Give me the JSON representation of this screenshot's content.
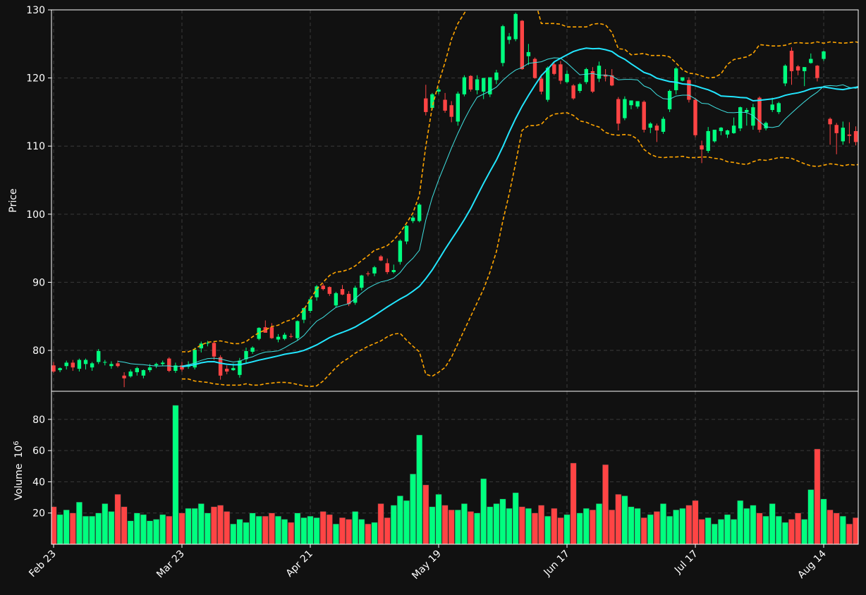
{
  "chart_data": {
    "type": "candlestick",
    "colors": {
      "background": "#111111",
      "up": "#00ff7f",
      "down": "#ff4444",
      "grid": "#3a3a3a",
      "axis": "#ffffff",
      "ma_thick": "#22e6ff",
      "ma_thin": "#3fe0e0",
      "band": "#ffa500"
    },
    "price_panel": {
      "ylabel": "Price",
      "ylim": [
        74,
        130
      ],
      "yticks": [
        80,
        90,
        100,
        110,
        120,
        130
      ]
    },
    "volume_panel": {
      "ylabel": "Volume",
      "ylabel_exponent": "6",
      "ylim": [
        0,
        98
      ],
      "yticks": [
        20,
        40,
        60,
        80
      ]
    },
    "x_ticks": [
      {
        "index": 0,
        "label": "Feb 23"
      },
      {
        "index": 20,
        "label": "Mar 23"
      },
      {
        "index": 40,
        "label": "Apr 21"
      },
      {
        "index": 60,
        "label": "May 19"
      },
      {
        "index": 80,
        "label": "Jun 17"
      },
      {
        "index": 100,
        "label": "Jul 17"
      },
      {
        "index": 120,
        "label": "Aug 14"
      }
    ],
    "grid": true,
    "ohlc": [
      [
        77.8,
        78.3,
        76.7,
        76.9
      ],
      [
        77.1,
        77.5,
        76.8,
        77.4
      ],
      [
        77.7,
        78.5,
        77.2,
        78.2
      ],
      [
        78.2,
        78.6,
        77.0,
        77.5
      ],
      [
        77.3,
        78.8,
        76.9,
        78.6
      ],
      [
        78.0,
        78.8,
        77.2,
        78.6
      ],
      [
        77.5,
        78.3,
        77.0,
        78.1
      ],
      [
        78.3,
        80.2,
        78.0,
        79.9
      ],
      [
        78.3,
        78.6,
        77.8,
        78.3
      ],
      [
        77.7,
        78.4,
        77.3,
        78.0
      ],
      [
        78.1,
        78.5,
        77.5,
        77.7
      ],
      [
        76.3,
        76.8,
        74.6,
        75.9
      ],
      [
        76.2,
        77.2,
        76.0,
        76.9
      ],
      [
        76.8,
        77.6,
        76.3,
        77.4
      ],
      [
        76.3,
        77.2,
        75.9,
        77.1
      ],
      [
        77.1,
        78.0,
        76.8,
        77.5
      ],
      [
        77.8,
        78.2,
        77.4,
        78.0
      ],
      [
        78.0,
        78.5,
        77.7,
        78.2
      ],
      [
        78.8,
        79.0,
        76.8,
        77.0
      ],
      [
        77.0,
        78.2,
        76.7,
        77.8
      ],
      [
        77.8,
        78.3,
        76.9,
        77.2
      ],
      [
        77.6,
        78.4,
        77.3,
        77.9
      ],
      [
        77.5,
        80.4,
        77.2,
        80.1
      ],
      [
        80.3,
        81.3,
        79.7,
        81.0
      ],
      [
        81.0,
        81.4,
        80.6,
        81.1
      ],
      [
        81.1,
        81.3,
        78.6,
        79.1
      ],
      [
        79.0,
        79.3,
        75.7,
        76.3
      ],
      [
        77.3,
        77.8,
        76.5,
        76.9
      ],
      [
        77.1,
        78.1,
        77.0,
        77.4
      ],
      [
        76.4,
        78.9,
        76.0,
        78.5
      ],
      [
        78.7,
        80.4,
        78.2,
        79.9
      ],
      [
        79.8,
        80.6,
        79.5,
        80.4
      ],
      [
        81.7,
        83.4,
        81.5,
        83.3
      ],
      [
        83.4,
        84.4,
        82.6,
        82.6
      ],
      [
        83.4,
        84.0,
        81.7,
        81.8
      ],
      [
        81.6,
        82.4,
        81.2,
        82.0
      ],
      [
        81.7,
        82.6,
        81.5,
        82.3
      ],
      [
        82.1,
        82.5,
        81.8,
        82.0
      ],
      [
        81.8,
        84.4,
        81.5,
        84.3
      ],
      [
        84.5,
        86.3,
        84.0,
        86.2
      ],
      [
        85.8,
        87.8,
        85.5,
        87.5
      ],
      [
        87.8,
        89.6,
        87.3,
        89.4
      ],
      [
        89.5,
        89.8,
        88.8,
        89.0
      ],
      [
        89.3,
        89.4,
        88.0,
        88.3
      ],
      [
        86.6,
        88.6,
        86.3,
        88.4
      ],
      [
        89.0,
        89.6,
        88.1,
        88.2
      ],
      [
        88.3,
        88.7,
        86.5,
        86.8
      ],
      [
        87.0,
        89.5,
        86.7,
        89.2
      ],
      [
        89.2,
        91.1,
        88.8,
        91.0
      ],
      [
        91.3,
        91.6,
        90.9,
        91.2
      ],
      [
        91.3,
        92.4,
        90.9,
        92.2
      ],
      [
        93.8,
        94.0,
        93.1,
        93.2
      ],
      [
        92.8,
        93.5,
        91.2,
        91.5
      ],
      [
        91.5,
        92.6,
        91.3,
        91.8
      ],
      [
        93.0,
        96.3,
        92.6,
        96.1
      ],
      [
        96.0,
        98.4,
        95.6,
        98.3
      ],
      [
        99.0,
        99.8,
        98.7,
        99.5
      ],
      [
        99.0,
        101.6,
        98.8,
        101.4
      ],
      [
        117.0,
        119.0,
        114.5,
        115.0
      ],
      [
        115.6,
        117.8,
        115.3,
        117.6
      ],
      [
        118.0,
        118.6,
        117.6,
        118.3
      ],
      [
        116.8,
        117.8,
        114.9,
        115.2
      ],
      [
        116.0,
        116.6,
        113.5,
        114.3
      ],
      [
        113.6,
        118.0,
        113.0,
        117.7
      ],
      [
        117.6,
        120.4,
        117.3,
        120.1
      ],
      [
        120.3,
        120.4,
        118.0,
        118.3
      ],
      [
        118.2,
        120.4,
        117.6,
        119.8
      ],
      [
        118.0,
        119.9,
        116.9,
        120.0
      ],
      [
        117.6,
        120.0,
        117.2,
        120.1
      ],
      [
        119.7,
        121.2,
        119.1,
        120.8
      ],
      [
        122.2,
        127.8,
        121.7,
        127.6
      ],
      [
        125.6,
        126.6,
        125.0,
        126.1
      ],
      [
        125.7,
        129.6,
        125.4,
        129.4
      ],
      [
        128.4,
        128.5,
        121.2,
        121.3
      ],
      [
        123.2,
        125.0,
        121.9,
        123.8
      ],
      [
        122.8,
        123.0,
        119.9,
        120.0
      ],
      [
        119.9,
        120.5,
        117.6,
        118.0
      ],
      [
        116.8,
        121.7,
        116.5,
        121.5
      ],
      [
        122.0,
        122.4,
        120.4,
        120.6
      ],
      [
        122.0,
        122.5,
        119.1,
        119.6
      ],
      [
        119.4,
        121.1,
        119.2,
        120.6
      ],
      [
        118.9,
        119.1,
        116.8,
        117.0
      ],
      [
        118.1,
        119.3,
        117.8,
        119.1
      ],
      [
        119.4,
        121.5,
        119.1,
        121.3
      ],
      [
        121.0,
        121.6,
        117.8,
        118.0
      ],
      [
        119.9,
        122.4,
        119.4,
        121.8
      ],
      [
        120.5,
        121.3,
        119.5,
        120.2
      ],
      [
        120.4,
        121.3,
        118.8,
        118.9
      ],
      [
        116.9,
        117.2,
        112.3,
        113.3
      ],
      [
        114.1,
        117.3,
        113.8,
        116.9
      ],
      [
        116.0,
        116.7,
        115.4,
        116.7
      ],
      [
        115.8,
        116.6,
        115.5,
        116.6
      ],
      [
        116.5,
        116.7,
        112.0,
        112.4
      ],
      [
        112.7,
        113.5,
        111.9,
        113.3
      ],
      [
        113.0,
        113.3,
        110.6,
        112.3
      ],
      [
        112.1,
        114.3,
        111.8,
        114.0
      ],
      [
        115.4,
        118.3,
        115.0,
        118.1
      ],
      [
        118.2,
        121.6,
        117.6,
        121.4
      ],
      [
        119.6,
        120.0,
        119.5,
        120.1
      ],
      [
        119.7,
        120.1,
        116.4,
        116.8
      ],
      [
        116.8,
        117.1,
        111.3,
        111.6
      ],
      [
        110.1,
        110.8,
        107.5,
        109.5
      ],
      [
        109.3,
        112.8,
        109.0,
        112.2
      ],
      [
        110.7,
        112.4,
        110.5,
        112.4
      ],
      [
        112.2,
        112.8,
        111.6,
        112.7
      ],
      [
        111.7,
        112.4,
        111.2,
        112.3
      ],
      [
        111.9,
        114.2,
        111.8,
        113.0
      ],
      [
        112.6,
        115.8,
        112.2,
        115.7
      ],
      [
        115.0,
        115.6,
        113.0,
        115.3
      ],
      [
        113.0,
        116.2,
        112.4,
        115.7
      ],
      [
        117.1,
        117.3,
        112.0,
        112.4
      ],
      [
        112.6,
        113.6,
        112.3,
        113.4
      ],
      [
        115.3,
        117.1,
        115.0,
        116.1
      ],
      [
        115.0,
        116.5,
        114.7,
        116.3
      ],
      [
        119.2,
        122.0,
        118.8,
        121.8
      ],
      [
        124.0,
        124.5,
        119.0,
        121.0
      ],
      [
        121.7,
        121.9,
        120.4,
        121.1
      ],
      [
        121.0,
        121.5,
        118.8,
        121.6
      ],
      [
        122.2,
        123.6,
        122.1,
        122.8
      ],
      [
        121.8,
        121.9,
        119.5,
        120.0
      ],
      [
        122.8,
        124.0,
        122.5,
        123.9
      ],
      [
        114.0,
        114.2,
        110.2,
        113.2
      ],
      [
        113.1,
        113.4,
        108.8,
        111.9
      ],
      [
        110.7,
        113.6,
        110.2,
        112.7
      ],
      [
        111.7,
        113.5,
        110.4,
        111.5
      ],
      [
        112.2,
        112.9,
        110.1,
        110.6
      ],
      [
        110.3,
        111.3,
        109.1,
        109.6
      ],
      [
        110.9,
        112.0,
        110.2,
        110.8
      ]
    ],
    "volume_millions": [
      24,
      19,
      22,
      20,
      27,
      18,
      18,
      20,
      26,
      21,
      32,
      24,
      15,
      20,
      19,
      15,
      16,
      19,
      18,
      89,
      20,
      23,
      23,
      26,
      20,
      24,
      25,
      21,
      13,
      16,
      14,
      20,
      18,
      18,
      20,
      18,
      16,
      14,
      20,
      17,
      18,
      17,
      21,
      19,
      13,
      17,
      16,
      21,
      16,
      13,
      14,
      26,
      17,
      25,
      31,
      28,
      45,
      70,
      38,
      24,
      32,
      25,
      22,
      22,
      26,
      21,
      20,
      42,
      24,
      26,
      29,
      23,
      33,
      24,
      23,
      20,
      25,
      18,
      23,
      17,
      19,
      52,
      20,
      23,
      22,
      26,
      51,
      22,
      32,
      31,
      24,
      23,
      17,
      19,
      21,
      26,
      18,
      22,
      23,
      25,
      28,
      16,
      17,
      13,
      16,
      19,
      16,
      28,
      23,
      25,
      20,
      18,
      26,
      18,
      14,
      16,
      20,
      16,
      35,
      61,
      29,
      22,
      20,
      18,
      13,
      17
    ],
    "ma_thin": [
      null,
      null,
      null,
      null,
      null,
      null,
      null,
      null,
      null,
      null,
      78.4,
      78.26,
      78.05,
      77.96,
      77.9,
      77.79,
      77.7,
      77.73,
      77.74,
      77.6,
      77.72,
      77.89,
      78.16,
      78.53,
      78.8,
      78.85,
      78.75,
      78.5,
      78.3,
      78.42,
      78.81,
      79.06,
      79.48,
      79.76,
      79.82,
      79.93,
      80.39,
      80.95,
      81.46,
      82.19,
      83.3,
      84.3,
      84.85,
      85.6,
      86.32,
      86.61,
      86.87,
      87.6,
      88.43,
      89.14,
      89.65,
      90.07,
      90.26,
      90.61,
      91.43,
      92.64,
      93.53,
      94.71,
      99.12,
      102.43,
      105.04,
      107.37,
      109.72,
      111.87,
      113.86,
      115.64,
      117.18,
      117.63,
      118.11,
      118.65,
      119.65,
      120.49,
      121.17,
      121.54,
      122.14,
      122.26,
      122.38,
      122.76,
      122.96,
      122.91,
      122.21,
      121.34,
      120.47,
      120.55,
      120.65,
      120.42,
      120.41,
      120.28,
      119.73,
      119.79,
      119.79,
      119.71,
      118.83,
      118.45,
      117.54,
      116.97,
      116.89,
      117.35,
      117.47,
      117.47,
      116.94,
      116.28,
      116.2,
      115.71,
      115.28,
      114.93,
      114.9,
      114.98,
      114.93,
      114.48,
      113.61,
      112.83,
      112.72,
      112.92,
      113.98,
      114.85,
      115.71,
      116.51,
      117.28,
      117.92,
      118.8,
      118.88,
      118.82,
      119.0,
      118.6,
      118.49,
      118.75,
      119.8,
      119.66,
      119.18
    ],
    "ma_thick": [
      null,
      null,
      null,
      null,
      null,
      null,
      null,
      null,
      null,
      null,
      null,
      null,
      null,
      null,
      null,
      null,
      null,
      null,
      null,
      null,
      77.61,
      77.74,
      77.92,
      78.18,
      78.34,
      78.35,
      78.12,
      77.97,
      77.89,
      77.89,
      78.11,
      78.33,
      78.58,
      78.77,
      78.98,
      79.2,
      79.43,
      79.59,
      79.75,
      79.99,
      80.39,
      80.81,
      81.34,
      81.88,
      82.3,
      82.64,
      83.02,
      83.44,
      84.0,
      84.55,
      85.13,
      85.76,
      86.38,
      86.97,
      87.55,
      88.05,
      88.69,
      89.4,
      90.54,
      91.81,
      93.3,
      94.85,
      96.29,
      97.71,
      99.21,
      100.83,
      102.69,
      104.53,
      106.28,
      107.95,
      109.91,
      112.06,
      114.05,
      115.85,
      117.43,
      118.92,
      120.35,
      121.31,
      122.36,
      122.9,
      123.41,
      123.88,
      124.18,
      124.38,
      124.3,
      124.33,
      124.15,
      123.89,
      123.22,
      122.74,
      122.07,
      121.45,
      120.82,
      120.51,
      119.96,
      119.71,
      119.47,
      119.38,
      119.13,
      119.06,
      118.85,
      118.54,
      118.27,
      117.87,
      117.36,
      117.3,
      117.25,
      117.13,
      117.08,
      116.65,
      116.72,
      116.82,
      116.93,
      117.13,
      117.45,
      117.66,
      117.82,
      118.06,
      118.41,
      118.56,
      118.68,
      118.54,
      118.38,
      118.29,
      118.47,
      118.63,
      118.87,
      119.12,
      119.5,
      119.85
    ],
    "band_upper": [
      null,
      null,
      null,
      null,
      null,
      null,
      null,
      null,
      null,
      null,
      null,
      null,
      null,
      null,
      null,
      null,
      null,
      null,
      null,
      null,
      79.8,
      79.8,
      80.2,
      80.8,
      81.2,
      81.3,
      81.4,
      81.2,
      81.0,
      81.0,
      81.3,
      82.0,
      82.6,
      83.0,
      83.5,
      83.7,
      84.2,
      84.5,
      85.0,
      86.0,
      87.5,
      89.0,
      90.0,
      91.0,
      91.5,
      91.6,
      91.9,
      92.4,
      93.2,
      93.9,
      94.7,
      95.0,
      95.4,
      96.2,
      97.3,
      98.7,
      100.2,
      102.8,
      110.0,
      115.7,
      119.3,
      122.3,
      125.7,
      128.0,
      129.5,
      131.0,
      132.0,
      133.5,
      135.0,
      135.5,
      136.0,
      136.3,
      136.1,
      135.0,
      133.9,
      131.5,
      128.0,
      128.0,
      128.0,
      127.9,
      127.5,
      127.5,
      127.5,
      127.5,
      127.9,
      128.0,
      127.8,
      126.7,
      124.3,
      124.2,
      123.4,
      123.5,
      123.6,
      123.3,
      123.3,
      123.3,
      123.1,
      122.2,
      121.2,
      120.7,
      120.6,
      120.3,
      120.0,
      120.1,
      120.6,
      122.0,
      122.7,
      122.9,
      123.1,
      123.6,
      124.9,
      124.8,
      124.7,
      124.7,
      124.8,
      125.1,
      125.2,
      125.1,
      125.1,
      125.3,
      125.1,
      125.3,
      125.2,
      125.1,
      125.2,
      125.3,
      125.1,
      125.0,
      125.2,
      125.1
    ],
    "band_lower": [
      null,
      null,
      null,
      null,
      null,
      null,
      null,
      null,
      null,
      null,
      null,
      null,
      null,
      null,
      null,
      null,
      null,
      null,
      null,
      null,
      75.8,
      75.8,
      75.5,
      75.4,
      75.3,
      75.1,
      75.0,
      74.9,
      74.9,
      74.9,
      75.1,
      74.9,
      74.9,
      75.1,
      75.2,
      75.3,
      75.3,
      75.2,
      75.0,
      74.8,
      74.7,
      74.8,
      75.5,
      76.5,
      77.5,
      78.3,
      78.9,
      79.6,
      80.1,
      80.6,
      81.0,
      81.4,
      82.0,
      82.4,
      82.5,
      81.5,
      80.6,
      79.8,
      76.5,
      76.2,
      76.8,
      77.5,
      79.0,
      81.0,
      83.0,
      85.0,
      87.0,
      89.0,
      91.5,
      94.5,
      99.0,
      103.0,
      107.5,
      112.3,
      113.0,
      113.0,
      113.2,
      114.2,
      114.7,
      114.8,
      114.9,
      114.5,
      113.7,
      113.5,
      113.1,
      112.8,
      112.0,
      111.7,
      111.6,
      111.7,
      111.6,
      111.0,
      109.5,
      108.8,
      108.4,
      108.3,
      108.4,
      108.4,
      108.5,
      108.3,
      108.3,
      108.4,
      108.4,
      108.2,
      108.1,
      107.7,
      107.6,
      107.4,
      107.3,
      107.7,
      108.0,
      107.9,
      108.1,
      108.3,
      108.3,
      108.2,
      107.8,
      107.4,
      107.1,
      107.0,
      107.2,
      107.4,
      107.3,
      107.1,
      107.3,
      107.2,
      107.5,
      107.4,
      107.3,
      107.1
    ]
  }
}
